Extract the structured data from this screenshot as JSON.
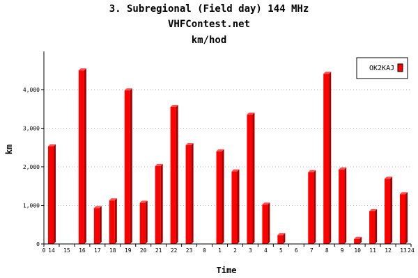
{
  "chart_data": {
    "type": "bar",
    "title": "3. Subregional (Field day) 144 MHz",
    "subtitle": "VHFContest.net",
    "subtitle2": "km/hod",
    "xlabel": "Time",
    "ylabel": "km",
    "ylim": [
      0,
      4900
    ],
    "y_ticks": [
      0,
      1000,
      2000,
      3000,
      4000
    ],
    "y_tick_labels": [
      "0",
      "1,000",
      "2,000",
      "3,000",
      "4,000"
    ],
    "x_edge_labels": [
      "0",
      "24"
    ],
    "categories": [
      "14",
      "15",
      "16",
      "17",
      "18",
      "19",
      "20",
      "21",
      "22",
      "23",
      "0",
      "1",
      "2",
      "3",
      "4",
      "5",
      "6",
      "7",
      "8",
      "9",
      "10",
      "11",
      "12",
      "13"
    ],
    "series": [
      {
        "name": "OK2KAJ",
        "color": "#ff0000",
        "values": [
          2530,
          0,
          4500,
          930,
          1130,
          3980,
          1070,
          2020,
          3550,
          2560,
          0,
          2400,
          1880,
          3350,
          1020,
          230,
          0,
          1860,
          4410,
          1930,
          130,
          850,
          1690,
          1290
        ]
      }
    ],
    "grid": true,
    "legend": "top-right"
  }
}
